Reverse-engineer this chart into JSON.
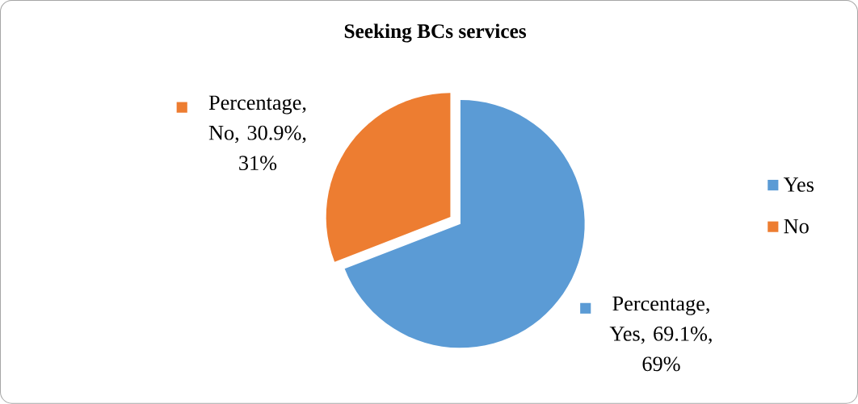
{
  "chart_data": {
    "type": "pie",
    "title": "Seeking BCs services",
    "categories": [
      "Yes",
      "No"
    ],
    "values": [
      69.1,
      30.9
    ],
    "colors": [
      "#5b9bd5",
      "#ed7d31"
    ],
    "value_labels": [
      "Percentage, Yes, 69.1%, 69%",
      "Percentage, No, 30.9%, 31%"
    ],
    "legend": "right"
  }
}
